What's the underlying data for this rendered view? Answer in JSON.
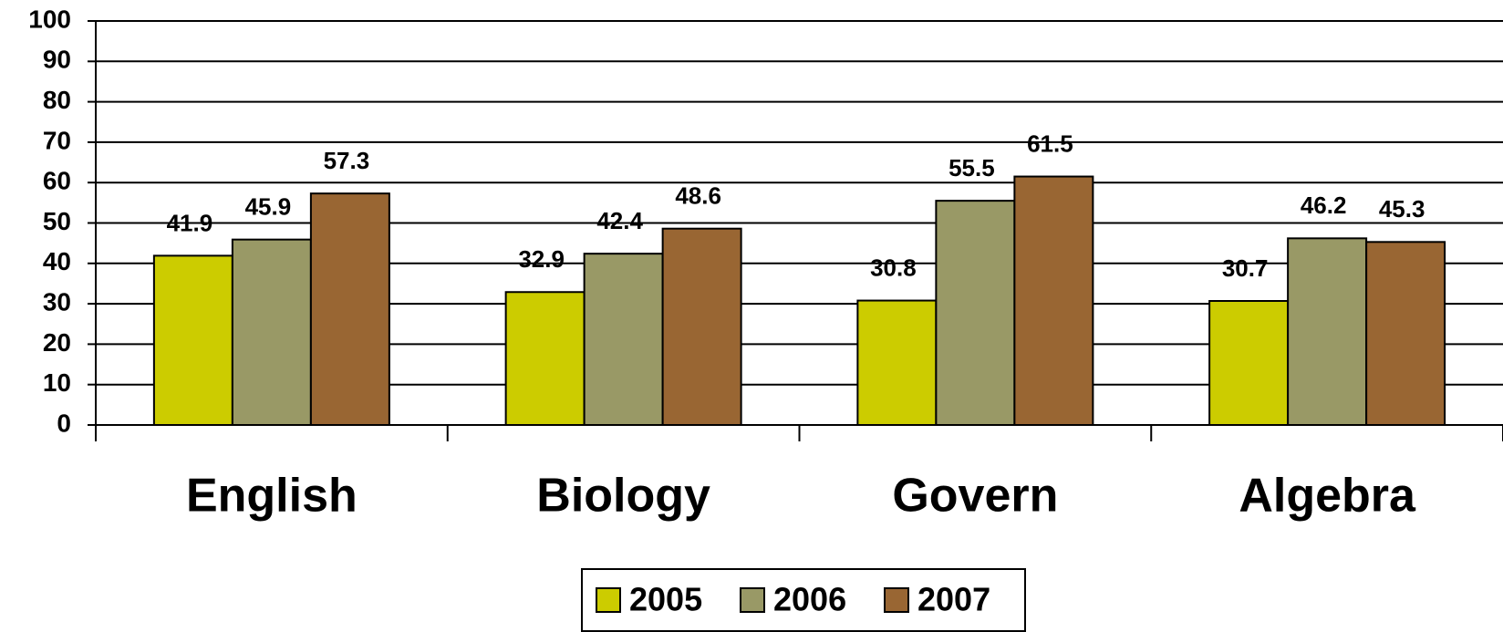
{
  "chart_data": {
    "type": "bar",
    "categories": [
      "English",
      "Biology",
      "Govern",
      "Algebra"
    ],
    "series": [
      {
        "name": "2005",
        "color": "#cccc00",
        "values": [
          41.9,
          32.9,
          30.8,
          30.7
        ]
      },
      {
        "name": "2006",
        "color": "#999966",
        "values": [
          45.9,
          42.4,
          55.5,
          46.2
        ]
      },
      {
        "name": "2007",
        "color": "#996633",
        "values": [
          57.3,
          48.6,
          61.5,
          45.3
        ]
      }
    ],
    "ylim": [
      0,
      100
    ],
    "yticks": [
      0,
      10,
      20,
      30,
      40,
      50,
      60,
      70,
      80,
      90,
      100
    ],
    "grid": true,
    "legend": "bottom"
  }
}
